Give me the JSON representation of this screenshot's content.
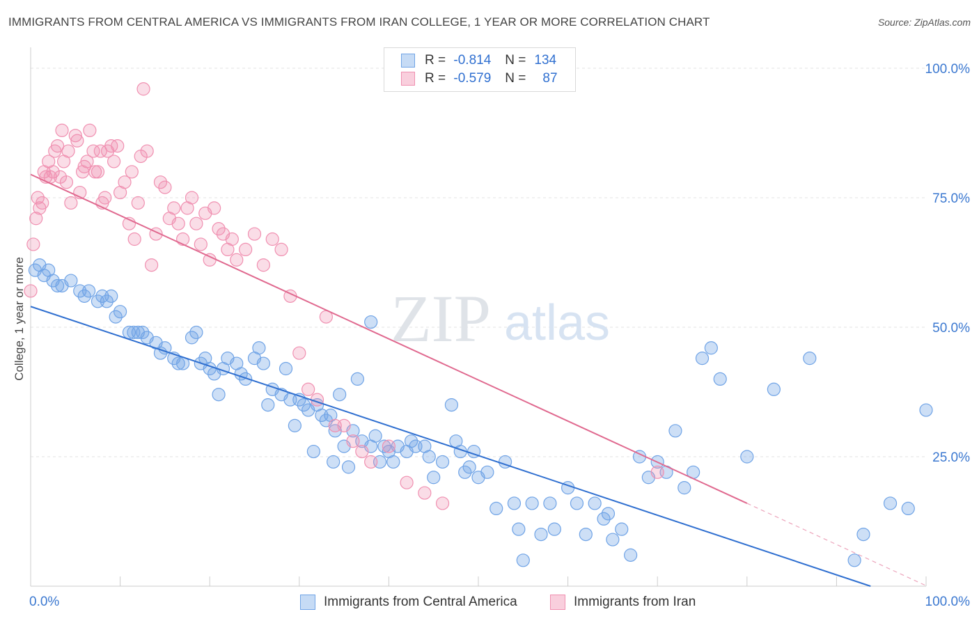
{
  "title": "IMMIGRANTS FROM CENTRAL AMERICA VS IMMIGRANTS FROM IRAN COLLEGE, 1 YEAR OR MORE CORRELATION CHART",
  "source": "Source: ZipAtlas.com",
  "watermark": {
    "zip": "ZIP",
    "atlas": "atlas"
  },
  "legend_top": {
    "rows": [
      {
        "r_label": "R =",
        "r_value": "-0.814",
        "n_label": "N =",
        "n_value": "134",
        "color": "#6fa3e6"
      },
      {
        "r_label": "R =",
        "r_value": "-0.579",
        "n_label": "N =",
        "n_value": "87",
        "color": "#f08fb0"
      }
    ]
  },
  "chart_data": {
    "type": "scatter",
    "xlabel": "",
    "ylabel": "College, 1 year or more",
    "xlim": [
      0,
      100
    ],
    "ylim": [
      0,
      100
    ],
    "x_tick_labels": [
      "0.0%",
      "100.0%"
    ],
    "y_tick_labels": [
      "25.0%",
      "50.0%",
      "75.0%",
      "100.0%"
    ],
    "y_ticks": [
      25,
      50,
      75,
      100
    ],
    "grid": true,
    "legend_position": "top-center",
    "series": [
      {
        "name": "Immigrants from Central America",
        "color": "#6fa3e6",
        "line_color": "#2f6fd0",
        "trend": {
          "x": [
            0,
            93.8
          ],
          "y": [
            54.0,
            0.0
          ],
          "dashed_to": null
        },
        "points": [
          [
            0.5,
            61
          ],
          [
            1,
            62
          ],
          [
            1.5,
            60
          ],
          [
            2,
            61
          ],
          [
            2.5,
            59
          ],
          [
            3,
            58
          ],
          [
            3.5,
            58
          ],
          [
            4.5,
            59
          ],
          [
            5.5,
            57
          ],
          [
            6,
            56
          ],
          [
            6.5,
            57
          ],
          [
            7.5,
            55
          ],
          [
            8,
            56
          ],
          [
            8.5,
            55
          ],
          [
            9,
            56
          ],
          [
            9.5,
            52
          ],
          [
            10,
            53
          ],
          [
            11,
            49
          ],
          [
            11.5,
            49
          ],
          [
            12,
            49
          ],
          [
            12.5,
            49
          ],
          [
            13,
            48
          ],
          [
            14,
            47
          ],
          [
            14.5,
            45
          ],
          [
            15,
            46
          ],
          [
            16,
            44
          ],
          [
            16.5,
            43
          ],
          [
            17,
            43
          ],
          [
            18,
            48
          ],
          [
            18.5,
            49
          ],
          [
            19,
            43
          ],
          [
            19.5,
            44
          ],
          [
            20,
            42
          ],
          [
            20.5,
            41
          ],
          [
            21,
            37
          ],
          [
            21.5,
            42
          ],
          [
            22,
            44
          ],
          [
            23,
            43
          ],
          [
            23.5,
            41
          ],
          [
            24,
            40
          ],
          [
            25,
            44
          ],
          [
            25.5,
            46
          ],
          [
            26,
            43
          ],
          [
            26.5,
            35
          ],
          [
            27,
            38
          ],
          [
            28,
            37
          ],
          [
            28.5,
            42
          ],
          [
            29,
            36
          ],
          [
            30,
            36
          ],
          [
            30.5,
            35
          ],
          [
            31,
            34
          ],
          [
            32,
            35
          ],
          [
            32.5,
            33
          ],
          [
            33,
            32
          ],
          [
            33.5,
            33
          ],
          [
            34,
            30
          ],
          [
            35,
            27
          ],
          [
            35.5,
            23
          ],
          [
            36,
            30
          ],
          [
            37,
            28
          ],
          [
            38,
            27
          ],
          [
            38.5,
            29
          ],
          [
            39,
            24
          ],
          [
            39.5,
            27
          ],
          [
            40,
            26
          ],
          [
            40.5,
            24
          ],
          [
            41,
            27
          ],
          [
            42,
            26
          ],
          [
            42.5,
            28
          ],
          [
            43,
            27
          ],
          [
            44,
            27
          ],
          [
            44.5,
            25
          ],
          [
            45,
            21
          ],
          [
            46,
            24
          ],
          [
            47,
            35
          ],
          [
            47.5,
            28
          ],
          [
            48,
            26
          ],
          [
            48.5,
            22
          ],
          [
            49,
            23
          ],
          [
            49.5,
            26
          ],
          [
            50,
            21
          ],
          [
            51,
            22
          ],
          [
            52,
            15
          ],
          [
            53,
            24
          ],
          [
            54,
            16
          ],
          [
            54.5,
            11
          ],
          [
            55,
            5
          ],
          [
            56,
            16
          ],
          [
            57,
            10
          ],
          [
            58,
            16
          ],
          [
            58.5,
            11
          ],
          [
            60,
            19
          ],
          [
            61,
            16
          ],
          [
            62,
            10
          ],
          [
            63,
            16
          ],
          [
            64,
            13
          ],
          [
            64.5,
            14
          ],
          [
            65,
            9
          ],
          [
            66,
            11
          ],
          [
            67,
            6
          ],
          [
            68,
            25
          ],
          [
            69,
            21
          ],
          [
            70,
            24
          ],
          [
            71,
            22
          ],
          [
            72,
            30
          ],
          [
            73,
            19
          ],
          [
            74,
            22
          ],
          [
            75,
            44
          ],
          [
            76,
            46
          ],
          [
            77,
            40
          ],
          [
            80,
            25
          ],
          [
            83,
            38
          ],
          [
            87,
            44
          ],
          [
            92,
            5
          ],
          [
            93,
            10
          ],
          [
            96,
            16
          ],
          [
            98,
            15
          ],
          [
            100,
            34
          ],
          [
            38,
            51
          ],
          [
            36.5,
            40
          ],
          [
            34.5,
            37
          ],
          [
            33.8,
            24
          ],
          [
            31.6,
            26
          ],
          [
            29.5,
            31
          ]
        ]
      },
      {
        "name": "Immigrants from Iran",
        "color": "#f08fb0",
        "line_color": "#e0698f",
        "trend": {
          "x": [
            0,
            80
          ],
          "y": [
            79.5,
            16.0
          ],
          "dashed_to": [
            100,
            0.1
          ]
        },
        "points": [
          [
            0,
            57
          ],
          [
            0.3,
            66
          ],
          [
            0.6,
            71
          ],
          [
            0.8,
            75
          ],
          [
            1,
            73
          ],
          [
            1.3,
            74
          ],
          [
            1.5,
            80
          ],
          [
            1.7,
            79
          ],
          [
            2,
            82
          ],
          [
            2.2,
            79
          ],
          [
            2.5,
            80
          ],
          [
            2.7,
            84
          ],
          [
            3,
            85
          ],
          [
            3.3,
            79
          ],
          [
            3.5,
            88
          ],
          [
            3.7,
            82
          ],
          [
            4,
            78
          ],
          [
            4.2,
            84
          ],
          [
            4.5,
            74
          ],
          [
            5,
            87
          ],
          [
            5.2,
            86
          ],
          [
            5.5,
            76
          ],
          [
            5.8,
            80
          ],
          [
            6,
            81
          ],
          [
            6.3,
            82
          ],
          [
            6.6,
            88
          ],
          [
            7,
            84
          ],
          [
            7.2,
            80
          ],
          [
            7.5,
            80
          ],
          [
            7.8,
            84
          ],
          [
            8,
            74
          ],
          [
            8.3,
            75
          ],
          [
            8.6,
            84
          ],
          [
            9,
            85
          ],
          [
            9.3,
            82
          ],
          [
            9.7,
            85
          ],
          [
            10,
            76
          ],
          [
            10.5,
            78
          ],
          [
            11,
            70
          ],
          [
            11.3,
            80
          ],
          [
            11.6,
            67
          ],
          [
            12,
            74
          ],
          [
            12.3,
            83
          ],
          [
            12.6,
            96
          ],
          [
            13,
            84
          ],
          [
            13.5,
            62
          ],
          [
            14,
            68
          ],
          [
            14.5,
            78
          ],
          [
            15,
            77
          ],
          [
            15.5,
            71
          ],
          [
            16,
            73
          ],
          [
            16.5,
            70
          ],
          [
            17,
            67
          ],
          [
            17.5,
            73
          ],
          [
            18,
            75
          ],
          [
            18.5,
            70
          ],
          [
            19,
            66
          ],
          [
            19.5,
            72
          ],
          [
            20,
            63
          ],
          [
            20.5,
            73
          ],
          [
            21,
            69
          ],
          [
            21.5,
            68
          ],
          [
            22,
            65
          ],
          [
            22.5,
            67
          ],
          [
            23,
            63
          ],
          [
            24,
            65
          ],
          [
            25,
            68
          ],
          [
            26,
            62
          ],
          [
            27,
            67
          ],
          [
            28,
            65
          ],
          [
            29,
            56
          ],
          [
            30,
            45
          ],
          [
            31,
            38
          ],
          [
            32,
            36
          ],
          [
            33,
            52
          ],
          [
            34,
            31
          ],
          [
            35,
            31
          ],
          [
            36,
            28
          ],
          [
            37,
            26
          ],
          [
            38,
            24
          ],
          [
            40,
            27
          ],
          [
            42,
            20
          ],
          [
            44,
            18
          ],
          [
            46,
            16
          ],
          [
            70,
            22
          ]
        ]
      }
    ]
  },
  "legend_bottom": [
    {
      "label": "Immigrants from Central America",
      "color": "#6fa3e6"
    },
    {
      "label": "Immigrants from Iran",
      "color": "#f08fb0"
    }
  ]
}
